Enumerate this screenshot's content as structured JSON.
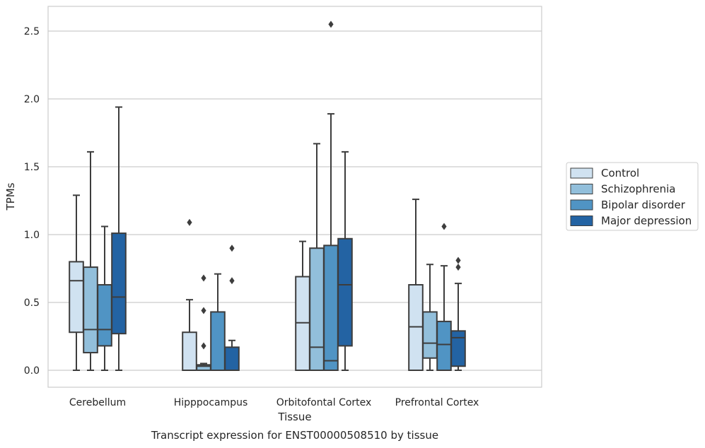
{
  "chart_data": {
    "type": "boxplot",
    "title": "",
    "caption": "Transcript expression for ENST00000508510 by tissue",
    "xlabel": "Tissue",
    "ylabel": "TPMs",
    "ylim": [
      -0.12,
      2.68
    ],
    "yticks": [
      "0.0",
      "0.5",
      "1.0",
      "1.5",
      "2.0",
      "2.5"
    ],
    "grid": "horizontal",
    "legend_position": "right",
    "categories": [
      "Cerebellum",
      "Hipppocampus",
      "Orbitofontal Cortex",
      "Prefrontal Cortex"
    ],
    "series": [
      {
        "name": "Control",
        "color": "#d0e2f1",
        "boxes": [
          {
            "whislo": 0.0,
            "q1": 0.28,
            "med": 0.66,
            "q3": 0.8,
            "whishi": 1.29,
            "fliers": []
          },
          {
            "whislo": 0.0,
            "q1": 0.0,
            "med": 0.0,
            "q3": 0.28,
            "whishi": 0.52,
            "fliers": [
              1.09
            ]
          },
          {
            "whislo": 0.0,
            "q1": 0.0,
            "med": 0.35,
            "q3": 0.69,
            "whishi": 0.95,
            "fliers": []
          },
          {
            "whislo": 0.0,
            "q1": 0.0,
            "med": 0.32,
            "q3": 0.63,
            "whishi": 1.26,
            "fliers": []
          }
        ]
      },
      {
        "name": "Schizophrenia",
        "color": "#92bfdb",
        "boxes": [
          {
            "whislo": 0.0,
            "q1": 0.13,
            "med": 0.3,
            "q3": 0.76,
            "whishi": 1.61,
            "fliers": []
          },
          {
            "whislo": 0.0,
            "q1": 0.0,
            "med": 0.03,
            "q3": 0.04,
            "whishi": 0.05,
            "fliers": [
              0.68,
              0.44,
              0.18
            ]
          },
          {
            "whislo": 0.0,
            "q1": 0.0,
            "med": 0.17,
            "q3": 0.9,
            "whishi": 1.67,
            "fliers": []
          },
          {
            "whislo": 0.0,
            "q1": 0.09,
            "med": 0.2,
            "q3": 0.43,
            "whishi": 0.78,
            "fliers": []
          }
        ]
      },
      {
        "name": "Bipolar disorder",
        "color": "#5094c4",
        "boxes": [
          {
            "whislo": 0.0,
            "q1": 0.18,
            "med": 0.3,
            "q3": 0.63,
            "whishi": 1.06,
            "fliers": []
          },
          {
            "whislo": 0.0,
            "q1": 0.0,
            "med": 0.0,
            "q3": 0.43,
            "whishi": 0.71,
            "fliers": []
          },
          {
            "whislo": 0.0,
            "q1": 0.0,
            "med": 0.07,
            "q3": 0.92,
            "whishi": 1.89,
            "fliers": [
              2.55
            ]
          },
          {
            "whislo": 0.0,
            "q1": 0.0,
            "med": 0.19,
            "q3": 0.36,
            "whishi": 0.77,
            "fliers": [
              1.06
            ]
          }
        ]
      },
      {
        "name": "Major depression",
        "color": "#2363a3",
        "boxes": [
          {
            "whislo": 0.0,
            "q1": 0.27,
            "med": 0.54,
            "q3": 1.01,
            "whishi": 1.94,
            "fliers": []
          },
          {
            "whislo": 0.0,
            "q1": 0.0,
            "med": 0.0,
            "q3": 0.17,
            "whishi": 0.22,
            "fliers": [
              0.9,
              0.66
            ]
          },
          {
            "whislo": 0.0,
            "q1": 0.18,
            "med": 0.63,
            "q3": 0.97,
            "whishi": 1.61,
            "fliers": []
          },
          {
            "whislo": 0.0,
            "q1": 0.03,
            "med": 0.24,
            "q3": 0.29,
            "whishi": 0.64,
            "fliers": [
              0.81,
              0.76
            ]
          }
        ]
      }
    ]
  }
}
